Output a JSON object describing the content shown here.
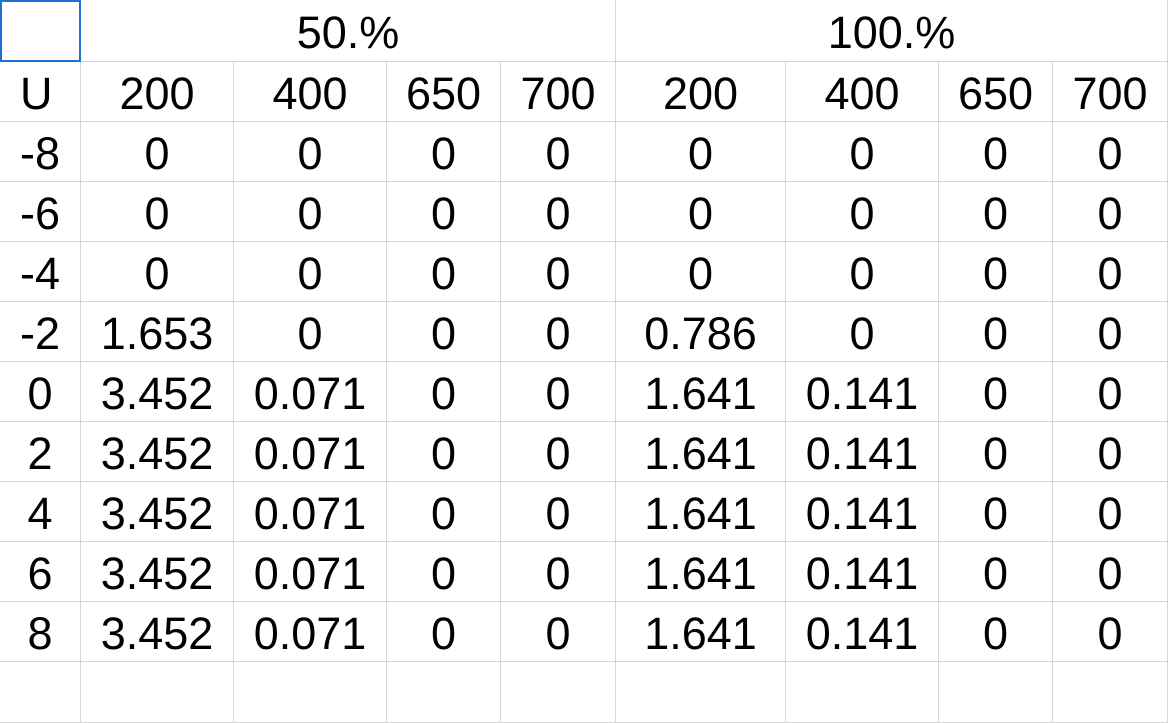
{
  "sheet": {
    "group_headers": [
      "50.%",
      "100.%"
    ],
    "row_header_label": "U",
    "column_labels": [
      "200",
      "400",
      "650",
      "700",
      "200",
      "400",
      "650",
      "700"
    ],
    "rows": [
      {
        "u": "-8",
        "values": [
          "0",
          "0",
          "0",
          "0",
          "0",
          "0",
          "0",
          "0"
        ]
      },
      {
        "u": "-6",
        "values": [
          "0",
          "0",
          "0",
          "0",
          "0",
          "0",
          "0",
          "0"
        ]
      },
      {
        "u": "-4",
        "values": [
          "0",
          "0",
          "0",
          "0",
          "0",
          "0",
          "0",
          "0"
        ]
      },
      {
        "u": "-2",
        "values": [
          "1.653",
          "0",
          "0",
          "0",
          "0.786",
          "0",
          "0",
          "0"
        ]
      },
      {
        "u": "0",
        "values": [
          "3.452",
          "0.071",
          "0",
          "0",
          "1.641",
          "0.141",
          "0",
          "0"
        ]
      },
      {
        "u": "2",
        "values": [
          "3.452",
          "0.071",
          "0",
          "0",
          "1.641",
          "0.141",
          "0",
          "0"
        ]
      },
      {
        "u": "4",
        "values": [
          "3.452",
          "0.071",
          "0",
          "0",
          "1.641",
          "0.141",
          "0",
          "0"
        ]
      },
      {
        "u": "6",
        "values": [
          "3.452",
          "0.071",
          "0",
          "0",
          "1.641",
          "0.141",
          "0",
          "0"
        ]
      },
      {
        "u": "8",
        "values": [
          "3.452",
          "0.071",
          "0",
          "0",
          "1.641",
          "0.141",
          "0",
          "0"
        ]
      }
    ]
  },
  "colors": {
    "gridline": "#d6d6d6",
    "selection": "#1e6fd6",
    "text": "#000000",
    "background": "#ffffff"
  }
}
